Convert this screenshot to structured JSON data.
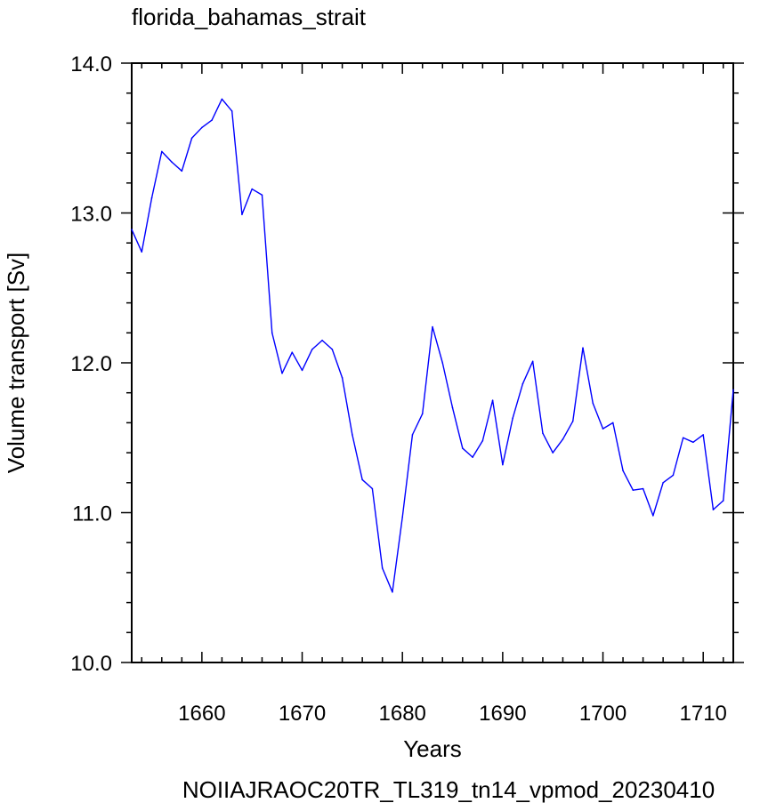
{
  "chart_data": {
    "type": "line",
    "title": "florida_bahamas_strait",
    "xlabel": "Years",
    "ylabel": "Volume transport [Sv]",
    "footer": "NOIIAJRAOC20TR_TL319_tn14_vpmod_20230410",
    "xlim": [
      1653,
      1713
    ],
    "ylim": [
      10.0,
      14.0
    ],
    "xticks": [
      1660,
      1670,
      1680,
      1690,
      1700,
      1710
    ],
    "xtick_labels": [
      "1660",
      "1670",
      "1680",
      "1690",
      "1700",
      "1710"
    ],
    "yticks": [
      10.0,
      11.0,
      12.0,
      13.0,
      14.0
    ],
    "ytick_labels": [
      "10.0",
      "11.0",
      "12.0",
      "13.0",
      "14.0"
    ],
    "grid": false,
    "colors": {
      "line": "#0000ff",
      "footer": "#0000ff",
      "axes": "#000000"
    },
    "series": [
      {
        "x": [
          1653,
          1654,
          1655,
          1656,
          1657,
          1658,
          1659,
          1660,
          1661,
          1662,
          1663,
          1664,
          1665,
          1666,
          1667,
          1668,
          1669,
          1670,
          1671,
          1672,
          1673,
          1674,
          1675,
          1676,
          1677,
          1678,
          1679,
          1680,
          1681,
          1682,
          1683,
          1684,
          1685,
          1686,
          1687,
          1688,
          1689,
          1690,
          1691,
          1692,
          1693,
          1694,
          1695,
          1696,
          1697,
          1698,
          1699,
          1700,
          1701,
          1702,
          1703,
          1704,
          1705,
          1706,
          1707,
          1708,
          1709,
          1710,
          1711,
          1712,
          1713
        ],
        "y": [
          12.89,
          12.74,
          13.1,
          13.41,
          13.34,
          13.28,
          13.5,
          13.57,
          13.62,
          13.76,
          13.68,
          12.99,
          13.16,
          13.12,
          12.2,
          11.93,
          12.07,
          11.95,
          12.09,
          12.15,
          12.09,
          11.9,
          11.52,
          11.22,
          11.16,
          10.63,
          10.47,
          10.97,
          11.52,
          11.66,
          12.24,
          12.0,
          11.7,
          11.43,
          11.37,
          11.48,
          11.75,
          11.32,
          11.63,
          11.86,
          12.01,
          11.53,
          11.4,
          11.49,
          11.61,
          12.1,
          11.73,
          11.56,
          11.6,
          11.28,
          11.15,
          11.16,
          10.98,
          11.2,
          11.25,
          11.5,
          11.47,
          11.52,
          11.02,
          11.08,
          11.82
        ]
      }
    ]
  }
}
